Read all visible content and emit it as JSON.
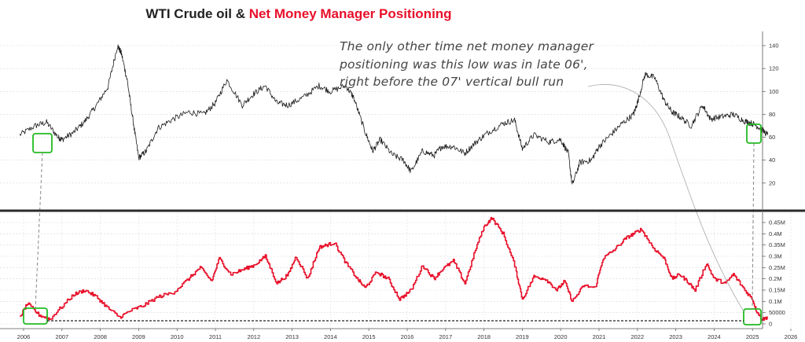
{
  "title": {
    "part1": "WTI Crude oil & ",
    "part2": "Net Money Manager Positioning"
  },
  "annotation": {
    "lines": [
      "The only other time net money manager",
      "positioning was this low was in late 06',",
      "right before the 07' vertical bull run"
    ]
  },
  "colors": {
    "price": "#1a1a1a",
    "positioning": "#e8102a",
    "highlight": "#22bb22",
    "title_accent": "#e8102a"
  },
  "chart_data": [
    {
      "type": "line",
      "title": "WTI Crude oil",
      "xlabel": "",
      "ylabel": "",
      "ylim": [
        0,
        150
      ],
      "yticks": [
        "20",
        "40",
        "60",
        "80",
        "100",
        "120",
        "140"
      ],
      "series": [
        {
          "name": "WTI Crude oil",
          "x": [
            2005.9,
            2006.3,
            2006.6,
            2006.9,
            2007.0,
            2007.3,
            2007.6,
            2007.9,
            2008.2,
            2008.45,
            2008.55,
            2008.7,
            2008.85,
            2009.0,
            2009.2,
            2009.5,
            2009.9,
            2010.3,
            2010.7,
            2011.0,
            2011.3,
            2011.7,
            2012.0,
            2012.3,
            2012.6,
            2012.9,
            2013.3,
            2013.7,
            2014.0,
            2014.4,
            2014.6,
            2014.9,
            2015.1,
            2015.3,
            2015.6,
            2015.9,
            2016.1,
            2016.4,
            2016.7,
            2016.9,
            2017.2,
            2017.5,
            2017.8,
            2018.1,
            2018.5,
            2018.8,
            2019.0,
            2019.3,
            2019.7,
            2020.0,
            2020.2,
            2020.3,
            2020.5,
            2020.8,
            2021.0,
            2021.3,
            2021.6,
            2021.9,
            2022.0,
            2022.2,
            2022.45,
            2022.7,
            2022.9,
            2023.1,
            2023.4,
            2023.7,
            2023.9,
            2024.2,
            2024.5,
            2024.8,
            2025.0,
            2025.2,
            2025.4
          ],
          "y": [
            62,
            70,
            73,
            60,
            58,
            64,
            74,
            88,
            104,
            140,
            133,
            110,
            75,
            42,
            48,
            68,
            76,
            82,
            80,
            90,
            110,
            88,
            98,
            105,
            90,
            88,
            95,
            105,
            100,
            105,
            95,
            65,
            48,
            58,
            45,
            40,
            30,
            48,
            44,
            52,
            52,
            46,
            56,
            64,
            72,
            75,
            50,
            62,
            56,
            58,
            46,
            18,
            38,
            40,
            52,
            62,
            72,
            80,
            90,
            115,
            112,
            92,
            82,
            78,
            70,
            88,
            76,
            78,
            80,
            74,
            72,
            68,
            62
          ]
        }
      ]
    },
    {
      "type": "line",
      "title": "Net Money Manager Positioning",
      "xlabel": "",
      "ylabel": "",
      "ylim": [
        -30000,
        480000
      ],
      "yticks": [
        "0",
        "50000",
        "0.1M",
        "0.15M",
        "0.2M",
        "0.25M",
        "0.3M",
        "0.35M",
        "0.4M",
        "0.45M"
      ],
      "xticks": [
        "2006",
        "2007",
        "2008",
        "2009",
        "2010",
        "2011",
        "2012",
        "2013",
        "2014",
        "2015",
        "2016",
        "2017",
        "2018",
        "2019",
        "2020",
        "2021",
        "2022",
        "2023",
        "2024",
        "2025",
        "2026"
      ],
      "series": [
        {
          "name": "Net Money Manager Positioning",
          "x": [
            2005.9,
            2006.1,
            2006.4,
            2006.7,
            2006.9,
            2007.3,
            2007.6,
            2007.9,
            2008.2,
            2008.5,
            2008.8,
            2009.1,
            2009.5,
            2009.9,
            2010.3,
            2010.6,
            2010.9,
            2011.1,
            2011.4,
            2011.7,
            2012.0,
            2012.3,
            2012.6,
            2012.9,
            2013.1,
            2013.4,
            2013.7,
            2013.9,
            2014.1,
            2014.4,
            2014.7,
            2014.9,
            2015.2,
            2015.5,
            2015.8,
            2016.1,
            2016.4,
            2016.7,
            2016.9,
            2017.2,
            2017.5,
            2017.8,
            2018.0,
            2018.2,
            2018.5,
            2018.8,
            2019.0,
            2019.3,
            2019.6,
            2019.9,
            2020.1,
            2020.3,
            2020.6,
            2020.9,
            2021.1,
            2021.4,
            2021.7,
            2021.9,
            2022.1,
            2022.4,
            2022.7,
            2022.9,
            2023.1,
            2023.3,
            2023.5,
            2023.8,
            2024.0,
            2024.3,
            2024.5,
            2024.8,
            2025.0,
            2025.1,
            2025.25,
            2025.4
          ],
          "y": [
            30000,
            90000,
            40000,
            20000,
            60000,
            130000,
            150000,
            120000,
            70000,
            30000,
            60000,
            80000,
            120000,
            140000,
            200000,
            250000,
            190000,
            290000,
            220000,
            240000,
            260000,
            300000,
            180000,
            220000,
            300000,
            200000,
            340000,
            350000,
            360000,
            270000,
            200000,
            160000,
            230000,
            200000,
            110000,
            150000,
            260000,
            200000,
            240000,
            280000,
            180000,
            340000,
            430000,
            470000,
            400000,
            260000,
            110000,
            210000,
            200000,
            150000,
            190000,
            100000,
            170000,
            160000,
            290000,
            330000,
            380000,
            400000,
            420000,
            340000,
            290000,
            200000,
            220000,
            190000,
            150000,
            270000,
            200000,
            180000,
            220000,
            150000,
            110000,
            60000,
            20000,
            30000
          ]
        }
      ]
    }
  ]
}
